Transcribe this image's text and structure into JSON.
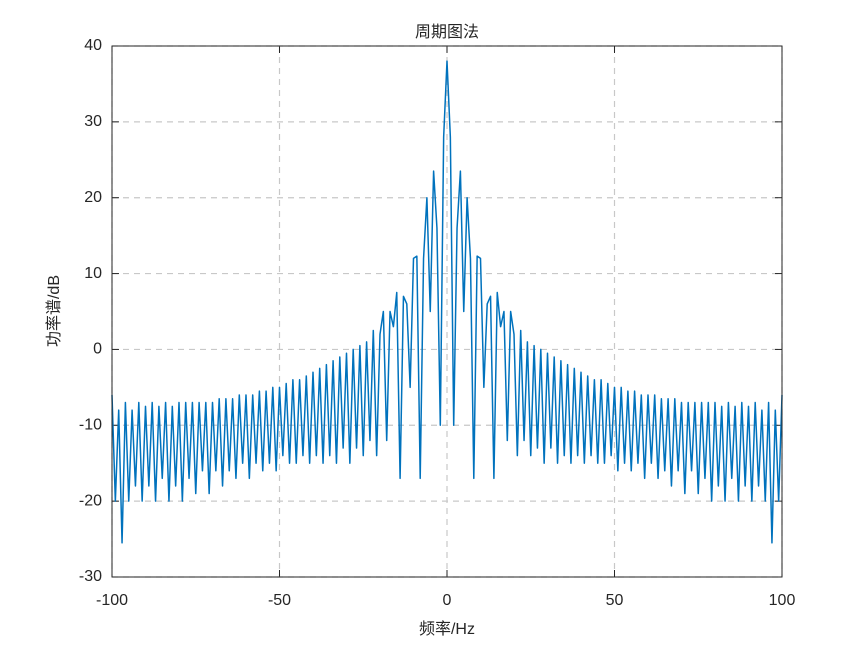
{
  "chart_data": {
    "type": "line",
    "title": "周期图法",
    "x_label": "频率/Hz",
    "y_label": "功率谱/dB",
    "xlim": [
      -100,
      100
    ],
    "xticks": [
      -100,
      -50,
      0,
      50,
      100
    ],
    "ylim": [
      -30,
      40
    ],
    "yticks": [
      -30,
      -20,
      -10,
      0,
      10,
      20,
      30,
      40
    ],
    "grid": true,
    "x": [
      -100,
      -99,
      -98,
      -97,
      -96,
      -95,
      -94,
      -93,
      -92,
      -91,
      -90,
      -89,
      -88,
      -87,
      -86,
      -85,
      -84,
      -83,
      -82,
      -81,
      -80,
      -79,
      -78,
      -77,
      -76,
      -75,
      -74,
      -73,
      -72,
      -71,
      -70,
      -69,
      -68,
      -67,
      -66,
      -65,
      -64,
      -63,
      -62,
      -61,
      -60,
      -59,
      -58,
      -57,
      -56,
      -55,
      -54,
      -53,
      -52,
      -51,
      -50,
      -49,
      -48,
      -47,
      -46,
      -45,
      -44,
      -43,
      -42,
      -41,
      -40,
      -39,
      -38,
      -37,
      -36,
      -35,
      -34,
      -33,
      -32,
      -31,
      -30,
      -29,
      -28,
      -27,
      -26,
      -25,
      -24,
      -23,
      -22,
      -21,
      -20,
      -19,
      -18,
      -17,
      -16,
      -15,
      -14,
      -13,
      -12,
      -11,
      -10,
      -9,
      -8,
      -7,
      -6,
      -5,
      -4,
      -3,
      -2,
      -1,
      0,
      1,
      2,
      3,
      4,
      5,
      6,
      7,
      8,
      9,
      10,
      11,
      12,
      13,
      14,
      15,
      16,
      17,
      18,
      19,
      20,
      21,
      22,
      23,
      24,
      25,
      26,
      27,
      28,
      29,
      30,
      31,
      32,
      33,
      34,
      35,
      36,
      37,
      38,
      39,
      40,
      41,
      42,
      43,
      44,
      45,
      46,
      47,
      48,
      49,
      50,
      51,
      52,
      53,
      54,
      55,
      56,
      57,
      58,
      59,
      60,
      61,
      62,
      63,
      64,
      65,
      66,
      67,
      68,
      69,
      70,
      71,
      72,
      73,
      74,
      75,
      76,
      77,
      78,
      79,
      80,
      81,
      82,
      83,
      84,
      85,
      86,
      87,
      88,
      89,
      90,
      91,
      92,
      93,
      94,
      95,
      96,
      97,
      98,
      99,
      100
    ],
    "series": [
      {
        "color": "#0072bd",
        "values": [
          -6,
          -20,
          -8,
          -25.5,
          -7,
          -20,
          -8,
          -18,
          -7,
          -20,
          -7.5,
          -18,
          -7,
          -20,
          -7.5,
          -17,
          -7,
          -20,
          -7.5,
          -18,
          -7,
          -20,
          -7,
          -17,
          -7,
          -19,
          -7,
          -16,
          -7,
          -19,
          -7,
          -16,
          -6.5,
          -18,
          -6.5,
          -16,
          -6.5,
          -17,
          -6,
          -15,
          -6,
          -17,
          -6,
          -15,
          -5.5,
          -16,
          -5.5,
          -15,
          -5,
          -16,
          -5,
          -14,
          -4.5,
          -15,
          -4,
          -15,
          -4,
          -14,
          -3.5,
          -15,
          -3,
          -14,
          -2.5,
          -15,
          -2,
          -14,
          -1.5,
          -15,
          -1,
          -13,
          -0.5,
          -15,
          0,
          -13,
          0.5,
          -14,
          1,
          -12,
          2.5,
          -14,
          2,
          5,
          -12,
          5,
          3,
          7.5,
          -17,
          7,
          6,
          -5,
          12,
          12.3,
          -17,
          12,
          20,
          5,
          23.5,
          16,
          -10,
          28,
          38,
          28,
          -10,
          16,
          23.5,
          5,
          20,
          12,
          -17,
          12.3,
          12,
          -5,
          6,
          7,
          -17,
          7.5,
          3,
          5,
          -12,
          5,
          2,
          -14,
          2.5,
          -12,
          1,
          -14,
          0.5,
          -13,
          0,
          -15,
          -0.5,
          -13,
          -1,
          -15,
          -1.5,
          -14,
          -2,
          -15,
          -2.5,
          -14,
          -3,
          -15,
          -3.5,
          -14,
          -4,
          -15,
          -4,
          -15,
          -4.5,
          -14,
          -5,
          -16,
          -5,
          -15,
          -5.5,
          -16,
          -5.5,
          -15,
          -6,
          -17,
          -6,
          -15,
          -6,
          -17,
          -6.5,
          -16,
          -6.5,
          -18,
          -6.5,
          -16,
          -7,
          -19,
          -7,
          -16,
          -7,
          -19,
          -7,
          -17,
          -7,
          -20,
          -7,
          -18,
          -7.5,
          -20,
          -7,
          -17,
          -7.5,
          -20,
          -7,
          -18,
          -7.5,
          -20,
          -7,
          -18,
          -8,
          -20,
          -7,
          -25.5,
          -8,
          -20,
          -6
        ]
      }
    ]
  }
}
